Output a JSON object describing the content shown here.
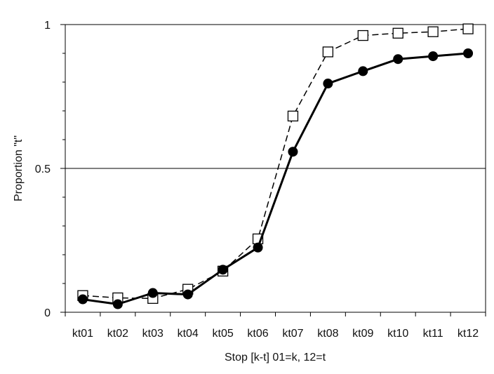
{
  "chart_data": {
    "type": "line",
    "title": "",
    "xlabel": "Stop [k-t] 01=k, 12=t",
    "ylabel": "Proportion \"t\"",
    "categories": [
      "kt01",
      "kt02",
      "kt03",
      "kt04",
      "kt05",
      "kt06",
      "kt07",
      "kt08",
      "kt09",
      "kt10",
      "kt11",
      "kt12"
    ],
    "ylim": [
      0,
      1
    ],
    "yticks": [
      {
        "value": 0,
        "label": "0"
      },
      {
        "value": 0.5,
        "label": "0.5"
      },
      {
        "value": 1,
        "label": "1"
      }
    ],
    "minor_tick_step": 0.1,
    "reference_line": 0.5,
    "grid": false,
    "legend": "none",
    "series": [
      {
        "style": "filled-circle-solid",
        "color": "#000000",
        "values": [
          0.045,
          0.028,
          0.067,
          0.062,
          0.148,
          0.225,
          0.558,
          0.795,
          0.838,
          0.88,
          0.89,
          0.9
        ]
      },
      {
        "style": "open-square-dashed",
        "color": "#000000",
        "values": [
          0.058,
          0.05,
          0.048,
          0.08,
          0.143,
          0.255,
          0.682,
          0.905,
          0.962,
          0.97,
          0.975,
          0.985
        ]
      }
    ]
  }
}
